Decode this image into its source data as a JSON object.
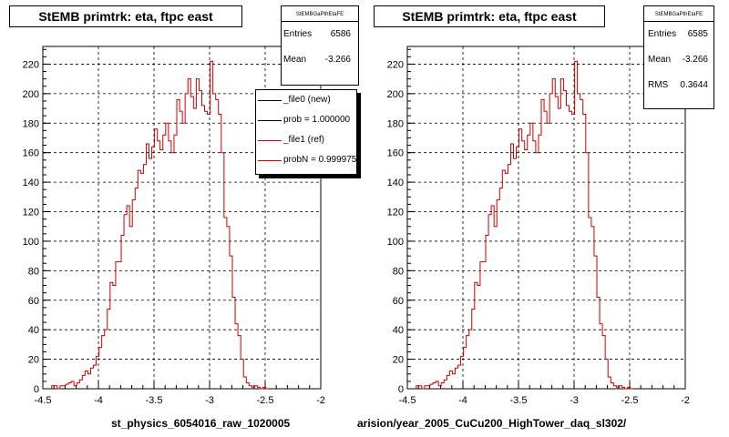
{
  "chart_data": [
    {
      "type": "histogram",
      "title": "StEMB primtrk: eta, ftpc east",
      "xlabel": "st_physics_6054016_raw_1020005",
      "xlim": [
        -4.5,
        -2
      ],
      "ylim": [
        0,
        232
      ],
      "x_ticks": [
        "-4.5",
        "-4",
        "-3.5",
        "-3",
        "-2.5",
        "-2"
      ],
      "y_ticks": [
        "0",
        "20",
        "40",
        "60",
        "80",
        "100",
        "120",
        "140",
        "160",
        "180",
        "200",
        "220"
      ],
      "grid": true,
      "stats": {
        "header": "StEMBGaPthEtaFE",
        "entries_label": "Entries",
        "entries": "6586",
        "mean_label": "Mean",
        "mean": "-3.266"
      },
      "legend": {
        "placement": "top-right",
        "entries": [
          {
            "label": "_file0 (new)",
            "color": "#000000"
          },
          {
            "label": "prob = 1.000000",
            "color": "#000000"
          },
          {
            "label": "_file1 (ref)",
            "color": "#cc0000"
          },
          {
            "label": "probN = 0.999975",
            "color": "#cc0000"
          }
        ]
      },
      "series": [
        {
          "color": "#cc0000",
          "bin_edges_x0": -4.42,
          "bin_width": 0.025,
          "values": [
            2,
            2,
            0,
            2,
            2,
            3,
            4,
            5,
            2,
            4,
            6,
            9,
            12,
            10,
            14,
            16,
            22,
            28,
            36,
            40,
            54,
            72,
            70,
            86,
            86,
            104,
            118,
            124,
            110,
            128,
            136,
            148,
            146,
            152,
            166,
            156,
            164,
            176,
            168,
            162,
            172,
            180,
            168,
            160,
            172,
            196,
            188,
            180,
            200,
            210,
            198,
            190,
            210,
            202,
            192,
            188,
            186,
            222,
            200,
            196,
            186,
            160,
            116,
            110,
            90,
            62,
            44,
            36,
            20,
            8,
            4,
            2,
            1,
            2,
            1,
            0,
            1,
            0
          ]
        }
      ]
    },
    {
      "type": "histogram",
      "title": "StEMB primtrk: eta, ftpc east",
      "xlabel": "arision/year_2005_CuCu200_HighTower_daq_sl302/",
      "xlim": [
        -4.5,
        -2
      ],
      "ylim": [
        0,
        232
      ],
      "x_ticks": [
        "-4.5",
        "-4",
        "-3.5",
        "-3",
        "-2.5",
        "-2"
      ],
      "y_ticks": [
        "0",
        "20",
        "40",
        "60",
        "80",
        "100",
        "120",
        "140",
        "160",
        "180",
        "200",
        "220"
      ],
      "grid": true,
      "stats": {
        "header": "StEMBGaPthEtaFE",
        "entries_label": "Entries",
        "entries": "6585",
        "mean_label": "Mean",
        "mean": "-3.266",
        "rms_label": "RMS",
        "rms": "0.3644"
      },
      "series": [
        {
          "color": "#cc0000",
          "bin_edges_x0": -4.42,
          "bin_width": 0.025,
          "values": [
            2,
            2,
            0,
            2,
            2,
            3,
            4,
            5,
            2,
            4,
            6,
            9,
            12,
            10,
            14,
            16,
            22,
            28,
            36,
            40,
            54,
            72,
            70,
            86,
            86,
            104,
            118,
            124,
            110,
            128,
            136,
            148,
            146,
            152,
            166,
            156,
            164,
            176,
            168,
            162,
            172,
            180,
            168,
            160,
            172,
            196,
            188,
            180,
            200,
            210,
            198,
            190,
            210,
            202,
            192,
            188,
            186,
            222,
            200,
            196,
            186,
            160,
            116,
            110,
            90,
            62,
            44,
            36,
            20,
            8,
            4,
            2,
            1,
            2,
            1,
            0,
            1,
            0
          ]
        }
      ]
    }
  ]
}
